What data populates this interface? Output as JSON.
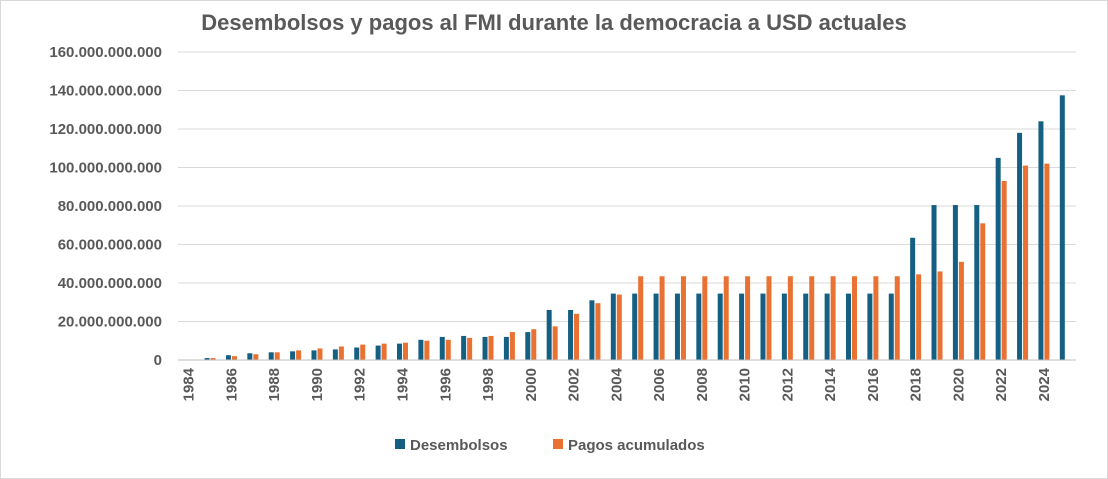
{
  "chart_data": {
    "type": "bar",
    "title": "Desembolsos y pagos al FMI durante la democracia a USD actuales",
    "xlabel": "",
    "ylabel": "",
    "ylim": [
      0,
      160000000000
    ],
    "yticks": [
      0,
      20000000000,
      40000000000,
      60000000000,
      80000000000,
      100000000000,
      120000000000,
      140000000000,
      160000000000
    ],
    "ytick_labels": [
      "0",
      "20.000.000.000",
      "40.000.000.000",
      "60.000.000.000",
      "80.000.000.000",
      "100.000.000.000",
      "120.000.000.000",
      "140.000.000.000",
      "160.000.000.000"
    ],
    "categories": [
      "1984",
      "1985",
      "1986",
      "1987",
      "1988",
      "1989",
      "1990",
      "1991",
      "1992",
      "1993",
      "1994",
      "1995",
      "1996",
      "1997",
      "1998",
      "1999",
      "2000",
      "2001",
      "2002",
      "2003",
      "2004",
      "2005",
      "2006",
      "2007",
      "2008",
      "2009",
      "2010",
      "2011",
      "2012",
      "2013",
      "2014",
      "2015",
      "2016",
      "2017",
      "2018",
      "2019",
      "2020",
      "2021",
      "2022",
      "2023",
      "2024",
      "2025"
    ],
    "xtick_labels": [
      "1984",
      "",
      "1986",
      "",
      "1988",
      "",
      "1990",
      "",
      "1992",
      "",
      "1994",
      "",
      "1996",
      "",
      "1998",
      "",
      "2000",
      "",
      "2002",
      "",
      "2004",
      "",
      "2006",
      "",
      "2008",
      "",
      "2010",
      "",
      "2012",
      "",
      "2014",
      "",
      "2016",
      "",
      "2018",
      "",
      "2020",
      "",
      "2022",
      "",
      "2024",
      ""
    ],
    "grid": true,
    "legend_position": "bottom",
    "series": [
      {
        "name": "Desembolsos",
        "color": "#156082",
        "values": [
          0,
          1000000000,
          2500000000,
          3500000000,
          4000000000,
          4500000000,
          5000000000,
          5500000000,
          6500000000,
          7500000000,
          8500000000,
          10500000000,
          12000000000,
          12500000000,
          12000000000,
          12000000000,
          14500000000,
          26000000000,
          26000000000,
          31000000000,
          34500000000,
          34500000000,
          34500000000,
          34500000000,
          34500000000,
          34500000000,
          34500000000,
          34500000000,
          34500000000,
          34500000000,
          34500000000,
          34500000000,
          34500000000,
          34500000000,
          63500000000,
          80500000000,
          80500000000,
          80500000000,
          105000000000,
          118000000000,
          124000000000,
          137500000000
        ]
      },
      {
        "name": "Pagos acumulados",
        "color": "#E97132",
        "values": [
          0,
          1000000000,
          2000000000,
          3000000000,
          4000000000,
          5000000000,
          6000000000,
          7000000000,
          8000000000,
          8500000000,
          9000000000,
          10000000000,
          10500000000,
          11500000000,
          12500000000,
          14500000000,
          16000000000,
          17500000000,
          24000000000,
          29500000000,
          34000000000,
          43500000000,
          43500000000,
          43500000000,
          43500000000,
          43500000000,
          43500000000,
          43500000000,
          43500000000,
          43500000000,
          43500000000,
          43500000000,
          43500000000,
          43500000000,
          44500000000,
          46000000000,
          51000000000,
          71000000000,
          93000000000,
          101000000000,
          102000000000,
          0
        ]
      }
    ]
  }
}
